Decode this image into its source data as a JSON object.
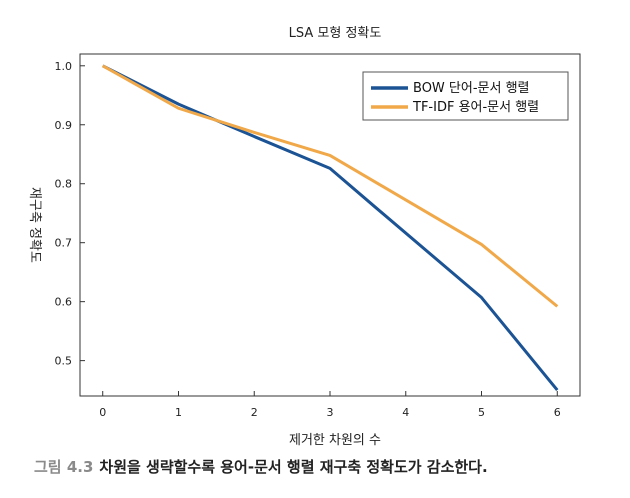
{
  "caption": {
    "figure_number": "그림 4.3",
    "text": "차원을 생략할수록 용어-문서 행렬 재구축 정확도가 감소한다."
  },
  "chart_data": {
    "type": "line",
    "title": "LSA 모형 정확도",
    "xlabel": "제거한 차원의 수",
    "ylabel": "재구축 정확도",
    "x": [
      0,
      1,
      2,
      3,
      4,
      5,
      6
    ],
    "xlim": [
      -0.3,
      6.3
    ],
    "ylim": [
      0.44,
      1.02
    ],
    "xticks": [
      0,
      1,
      2,
      3,
      4,
      5,
      6
    ],
    "yticks": [
      0.5,
      0.6,
      0.7,
      0.8,
      0.9,
      1.0
    ],
    "ytick_labels": [
      "0.5",
      "0.6",
      "0.7",
      "0.8",
      "0.9",
      "1.0"
    ],
    "grid": false,
    "legend_position": "top-right",
    "series": [
      {
        "name": "BOW 단어-문서 행렬",
        "color": "#1b5394",
        "x": [
          0,
          1,
          2,
          3,
          3.6,
          5,
          6
        ],
        "values": [
          1.0,
          0.935,
          0.88,
          0.826,
          0.76,
          0.607,
          0.45
        ]
      },
      {
        "name": "TF-IDF 용어-문서 행렬",
        "color": "#f0a848",
        "x": [
          0,
          1,
          2,
          3,
          5,
          6
        ],
        "values": [
          1.0,
          0.928,
          0.887,
          0.848,
          0.697,
          0.592
        ]
      }
    ]
  }
}
